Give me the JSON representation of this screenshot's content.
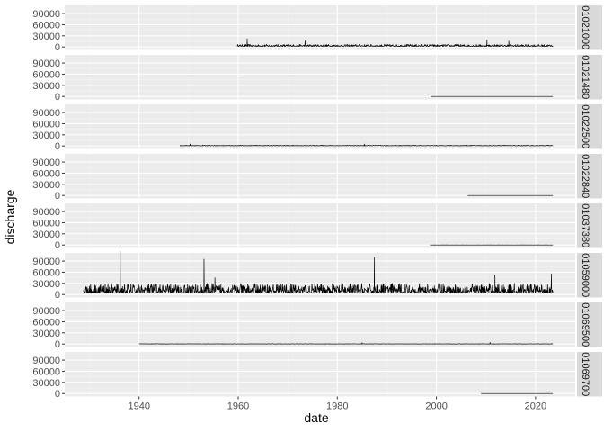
{
  "chart_data": {
    "type": "line",
    "facet": "rows",
    "xlabel": "date",
    "ylabel": "discharge",
    "x_ticks": [
      1940,
      1960,
      1980,
      2000,
      2020
    ],
    "x_range": [
      1925,
      2028
    ],
    "y_ticks": [
      0,
      30000,
      60000,
      90000
    ],
    "y_tick_labels": [
      "0",
      "30000",
      "60000",
      "90000"
    ],
    "y_range": [
      -8000,
      112000
    ],
    "grid": true,
    "legend": "none",
    "panels": [
      {
        "strip": "01021000",
        "start": 1959.8,
        "end": 2023.5,
        "base": 1500,
        "noise": 5500,
        "spikes": [
          [
            1961.8,
            22000
          ],
          [
            1973.5,
            17000
          ],
          [
            2010.2,
            19000
          ],
          [
            2014.6,
            16000
          ]
        ]
      },
      {
        "strip": "01021480",
        "start": 1998.8,
        "end": 2023.5,
        "base": 0,
        "noise": 60,
        "spikes": []
      },
      {
        "strip": "01022500",
        "start": 1948.2,
        "end": 2023.5,
        "base": 400,
        "noise": 1600,
        "spikes": [
          [
            1950.3,
            5500
          ],
          [
            1985.5,
            5000
          ]
        ]
      },
      {
        "strip": "01022840",
        "start": 2006.3,
        "end": 2023.5,
        "base": 0,
        "noise": 40,
        "spikes": []
      },
      {
        "strip": "01037380",
        "start": 1998.7,
        "end": 2023.5,
        "base": 0,
        "noise": 150,
        "spikes": []
      },
      {
        "strip": "01059000",
        "start": 1928.8,
        "end": 2023.5,
        "base": 4000,
        "noise": 26000,
        "spikes": [
          [
            1936.2,
            115000
          ],
          [
            1953.1,
            95000
          ],
          [
            1987.5,
            100000
          ],
          [
            1955.3,
            45000
          ],
          [
            2011.8,
            53000
          ],
          [
            2023.2,
            56000
          ]
        ]
      },
      {
        "strip": "01069500",
        "start": 1940.0,
        "end": 2023.5,
        "base": 150,
        "noise": 700,
        "spikes": [
          [
            1985.0,
            3500
          ],
          [
            2010.8,
            4500
          ]
        ]
      },
      {
        "strip": "01069700",
        "start": 2009.0,
        "end": 2023.5,
        "base": 0,
        "noise": 40,
        "spikes": []
      }
    ]
  }
}
